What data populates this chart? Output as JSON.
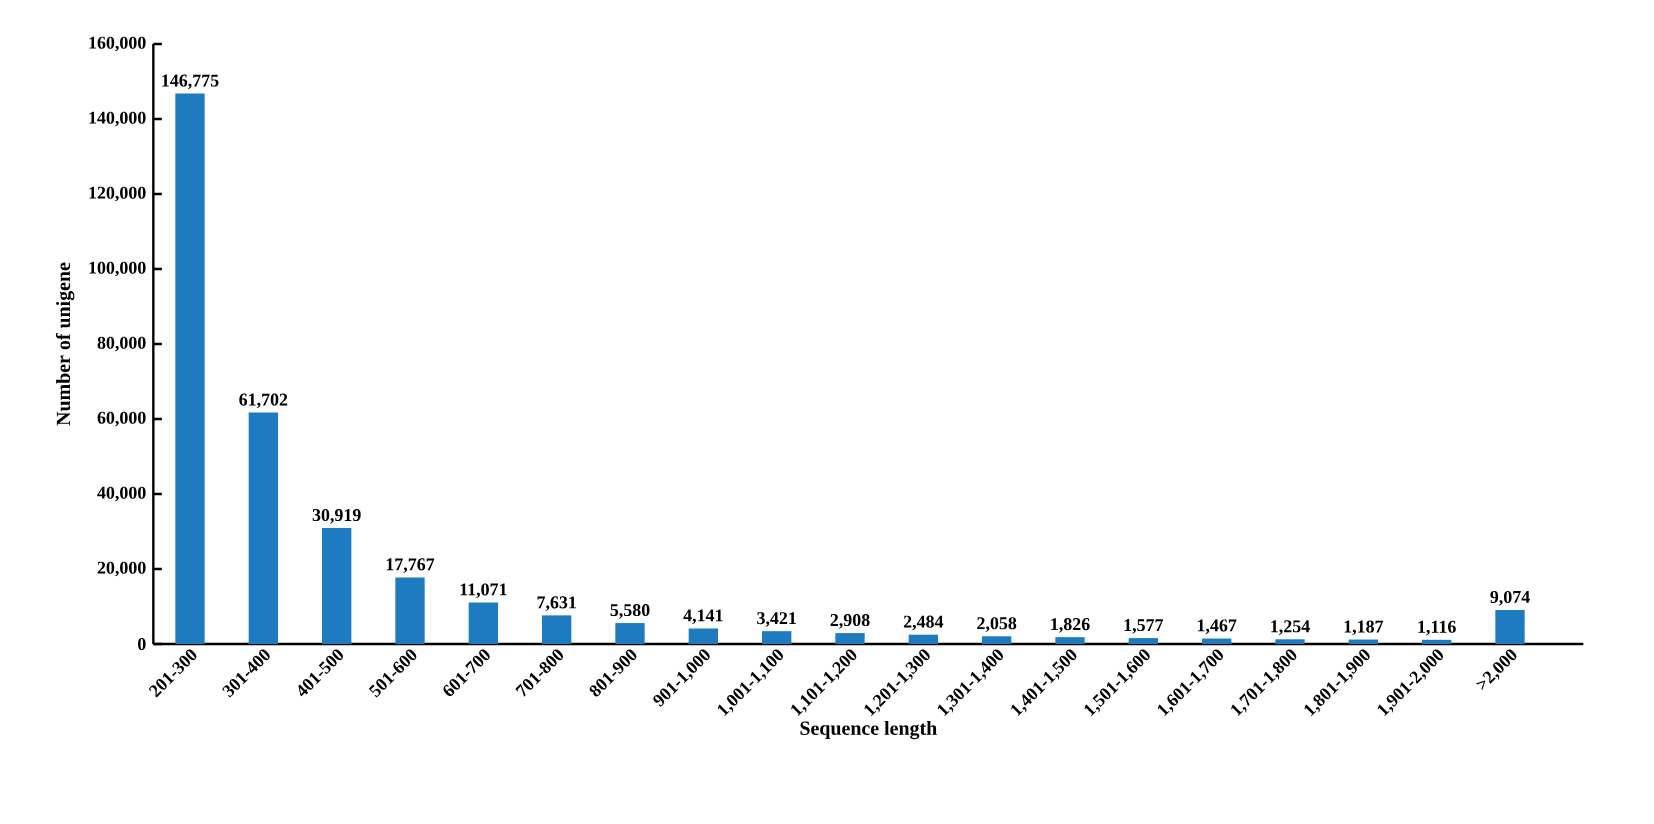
{
  "chart_data": {
    "type": "bar",
    "xlabel": "Sequence length",
    "ylabel": "Number of unigene",
    "color": "#1f7bbf",
    "categories": [
      "201-300",
      "301-400",
      "401-500",
      "501-600",
      "601-700",
      "701-800",
      "801-900",
      "901-1,000",
      "1,001-1,100",
      "1,101-1,200",
      "1,201-1,300",
      "1,301-1,400",
      "1,401-1,500",
      "1,501-1,600",
      "1,601-1,700",
      "1,701-1,800",
      "1,801-1,900",
      "1,901-2,000",
      ">2,000"
    ],
    "values": [
      146775,
      61702,
      30919,
      17767,
      11071,
      7631,
      5580,
      4141,
      3421,
      2908,
      2484,
      2058,
      1826,
      1577,
      1467,
      1254,
      1187,
      1116,
      9074
    ],
    "value_labels": [
      "146,775",
      "61,702",
      "30,919",
      "17,767",
      "11,071",
      "7,631",
      "5,580",
      "4,141",
      "3,421",
      "2,908",
      "2,484",
      "2,058",
      "1,826",
      "1,577",
      "1,467",
      "1,254",
      "1,187",
      "1,116",
      "9,074"
    ],
    "ylim": [
      0,
      160000
    ],
    "yticks": [
      0,
      {
        "value": 20000,
        "label": "20,000"
      },
      {
        "value": 40000,
        "label": "40,000"
      },
      {
        "value": 60000,
        "label": "60,000"
      },
      {
        "value": 80000,
        "label": "80,000"
      },
      {
        "value": 100000,
        "label": "100,000"
      },
      {
        "value": 120000,
        "label": "120,000"
      },
      {
        "value": 140000,
        "label": "140,000"
      },
      {
        "value": 160000,
        "label": "160,000"
      }
    ],
    "grid": false
  }
}
